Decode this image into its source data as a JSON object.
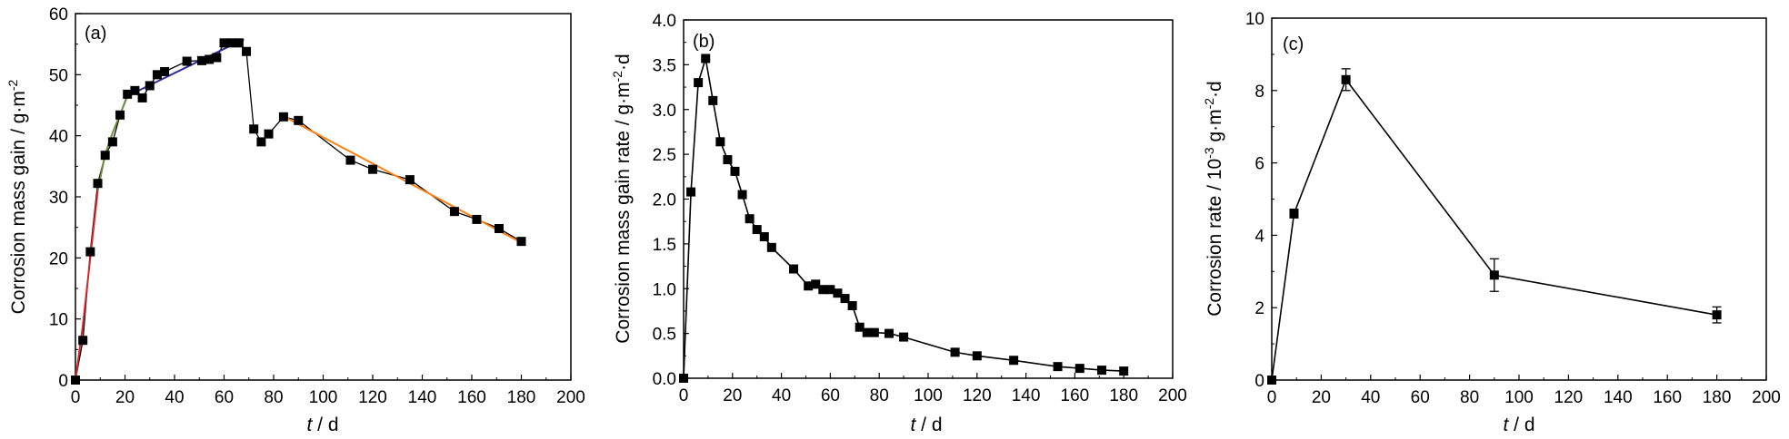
{
  "chart_data": [
    {
      "type": "scatter",
      "panel_label": "(a)",
      "ylabel": "Corrosion mass gain  / g·m",
      "ylabel_sup": "-2",
      "xlabel_italic": "t",
      "xlabel_rest": " / d",
      "xlim": [
        0,
        200
      ],
      "ylim": [
        0,
        60
      ],
      "xticks": [
        "0",
        "20",
        "40",
        "60",
        "80",
        "100",
        "120",
        "140",
        "160",
        "180",
        "200"
      ],
      "yticks": [
        "0",
        "10",
        "20",
        "30",
        "40",
        "50",
        "60"
      ],
      "grid": false,
      "series": [
        {
          "marker": "square",
          "color": "#000000",
          "x": [
            0,
            3,
            6,
            9,
            12,
            15,
            18,
            21,
            24,
            27,
            30,
            33,
            36,
            45,
            51,
            54,
            57,
            60,
            63,
            66,
            69,
            72,
            75,
            78,
            84,
            90,
            111,
            120,
            135,
            153,
            162,
            171,
            180
          ],
          "y": [
            0,
            6.5,
            21,
            32.2,
            36.8,
            39,
            43.4,
            46.8,
            47.4,
            46.2,
            48.2,
            50,
            50.5,
            52.2,
            52.3,
            52.5,
            52.8,
            55.2,
            55.2,
            55.2,
            53.8,
            41.1,
            39,
            40.3,
            43.1,
            42.5,
            36,
            34.5,
            32.8,
            27.6,
            26.3,
            24.8,
            22.7
          ]
        }
      ],
      "fit_lines": [
        {
          "color": "#d62728",
          "x": [
            0,
            3,
            6,
            9
          ],
          "y": [
            0,
            9,
            20,
            31
          ]
        },
        {
          "color": "#6b8e3c",
          "x": [
            9,
            12,
            15,
            18,
            21
          ],
          "y": [
            31,
            37,
            40.5,
            43.5,
            46.5
          ]
        },
        {
          "color": "#2b2b9e",
          "x": [
            21,
            68
          ],
          "y": [
            46.5,
            55.8
          ]
        },
        {
          "color": "#ff7f0e",
          "x": [
            84,
            180
          ],
          "y": [
            43.2,
            22.5
          ]
        }
      ]
    },
    {
      "type": "line",
      "panel_label": "(b)",
      "ylabel": "Corrosion mass gain rate / g·m",
      "ylabel_sup": "-2",
      "ylabel_tail": "·d",
      "xlabel_italic": "t",
      "xlabel_rest": " / d",
      "xlim": [
        0,
        200
      ],
      "ylim": [
        0,
        4.0
      ],
      "xticks": [
        "0",
        "20",
        "40",
        "60",
        "80",
        "100",
        "120",
        "140",
        "160",
        "180",
        "200"
      ],
      "yticks": [
        "0.0",
        "0.5",
        "1.0",
        "1.5",
        "2.0",
        "2.5",
        "3.0",
        "3.5",
        "4.0"
      ],
      "grid": false,
      "series": [
        {
          "marker": "square",
          "color": "#000000",
          "x": [
            0,
            3,
            6,
            9,
            12,
            15,
            18,
            21,
            24,
            27,
            30,
            33,
            36,
            45,
            51,
            54,
            57,
            60,
            63,
            66,
            69,
            72,
            75,
            78,
            84,
            90,
            111,
            120,
            135,
            153,
            162,
            171,
            180
          ],
          "y": [
            0,
            2.08,
            3.3,
            3.57,
            3.1,
            2.64,
            2.44,
            2.31,
            2.05,
            1.78,
            1.66,
            1.58,
            1.46,
            1.22,
            1.03,
            1.05,
            0.99,
            0.99,
            0.95,
            0.89,
            0.81,
            0.57,
            0.51,
            0.51,
            0.5,
            0.46,
            0.29,
            0.25,
            0.2,
            0.13,
            0.11,
            0.09,
            0.08
          ]
        }
      ]
    },
    {
      "type": "line",
      "panel_label": "(c)",
      "ylabel": "Corrosion rate / 10",
      "ylabel_sup": "-3",
      "ylabel_mid": " g·m",
      "ylabel_sup2": "-2",
      "ylabel_tail": "·d",
      "xlabel_italic": "t",
      "xlabel_rest": " / d",
      "xlim": [
        0,
        200
      ],
      "ylim": [
        0,
        10
      ],
      "xticks": [
        "0",
        "20",
        "40",
        "60",
        "80",
        "100",
        "120",
        "140",
        "160",
        "180",
        "200"
      ],
      "yticks": [
        "0",
        "2",
        "4",
        "6",
        "8",
        "10"
      ],
      "grid": false,
      "series": [
        {
          "marker": "square",
          "color": "#000000",
          "x": [
            0,
            9,
            30,
            90,
            180
          ],
          "y": [
            0,
            4.6,
            8.3,
            2.9,
            1.8
          ],
          "err": [
            0,
            0.12,
            0.3,
            0.45,
            0.22
          ]
        }
      ]
    }
  ]
}
